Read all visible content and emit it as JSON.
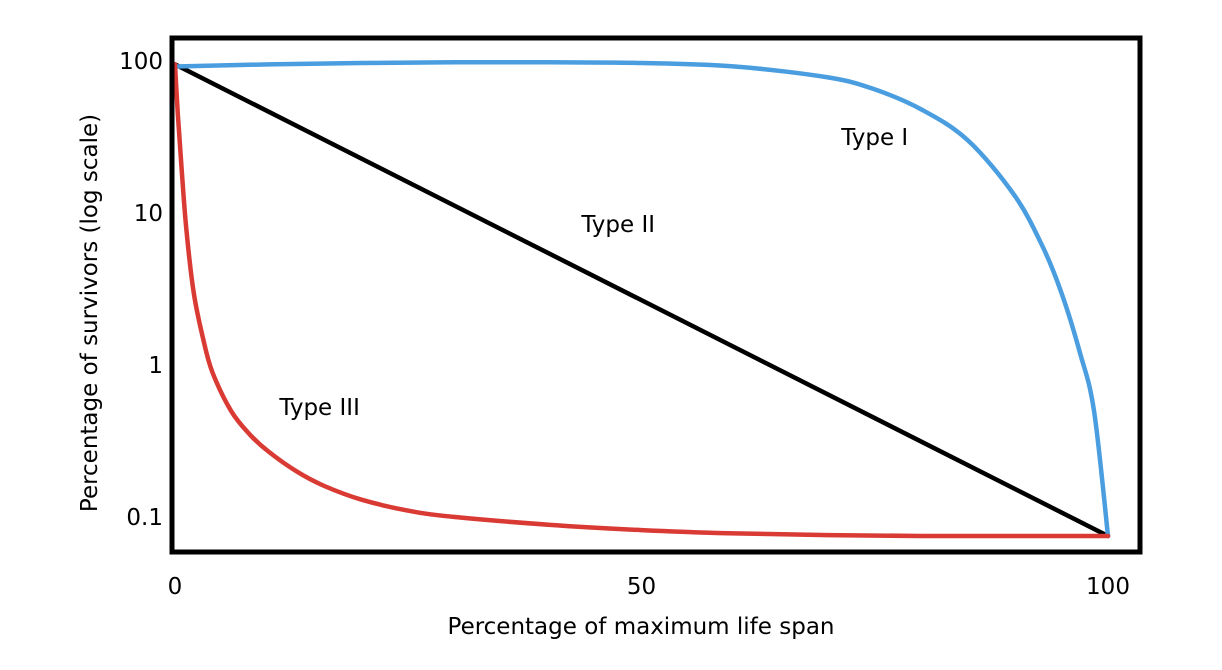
{
  "chart_data": {
    "type": "line",
    "title": "",
    "xlabel": "Percentage of maximum life span",
    "ylabel": "Percentage of survivors (log scale)",
    "xlim": [
      0,
      100
    ],
    "ylim": [
      0.1,
      100
    ],
    "yscale": "log",
    "grid": false,
    "x_ticks": [
      {
        "value": 0,
        "label": "0"
      },
      {
        "value": 50,
        "label": "50"
      },
      {
        "value": 100,
        "label": "100"
      }
    ],
    "y_ticks": [
      {
        "value": 100,
        "label": "100"
      },
      {
        "value": 10,
        "label": "10"
      },
      {
        "value": 1,
        "label": "1"
      },
      {
        "value": 0.1,
        "label": "0.1"
      }
    ],
    "series": [
      {
        "name": "Type I",
        "color": "#4a9ee0",
        "x": [
          0,
          10,
          20,
          30,
          40,
          50,
          60,
          70,
          75,
          80,
          85,
          90,
          93,
          95,
          97,
          98.5,
          100
        ],
        "y": [
          92,
          95,
          97,
          98,
          98,
          97,
          92,
          78,
          65,
          48,
          30,
          13,
          6,
          3,
          1.2,
          0.5,
          0.075
        ]
      },
      {
        "name": "Type II",
        "color": "#000000",
        "x": [
          0,
          100
        ],
        "y": [
          95,
          0.075
        ]
      },
      {
        "name": "Type III",
        "color": "#d93a33",
        "x": [
          0,
          0.3,
          0.7,
          1.2,
          2,
          3,
          4,
          6,
          8,
          10,
          13,
          16,
          20,
          25,
          30,
          40,
          50,
          60,
          70,
          80,
          90,
          100
        ],
        "y": [
          95,
          45,
          20,
          8,
          3,
          1.5,
          0.9,
          0.5,
          0.35,
          0.27,
          0.2,
          0.16,
          0.13,
          0.11,
          0.1,
          0.089,
          0.082,
          0.078,
          0.076,
          0.075,
          0.075,
          0.075
        ]
      }
    ],
    "annotations": [
      {
        "text": "Type I",
        "series": "Type I",
        "x": 75,
        "y": 28
      },
      {
        "text": "Type II",
        "series": "Type II",
        "x": 47.5,
        "y": 7.5
      },
      {
        "text": "Type III",
        "series": "Type III",
        "x": 15.5,
        "y": 0.47
      }
    ]
  }
}
